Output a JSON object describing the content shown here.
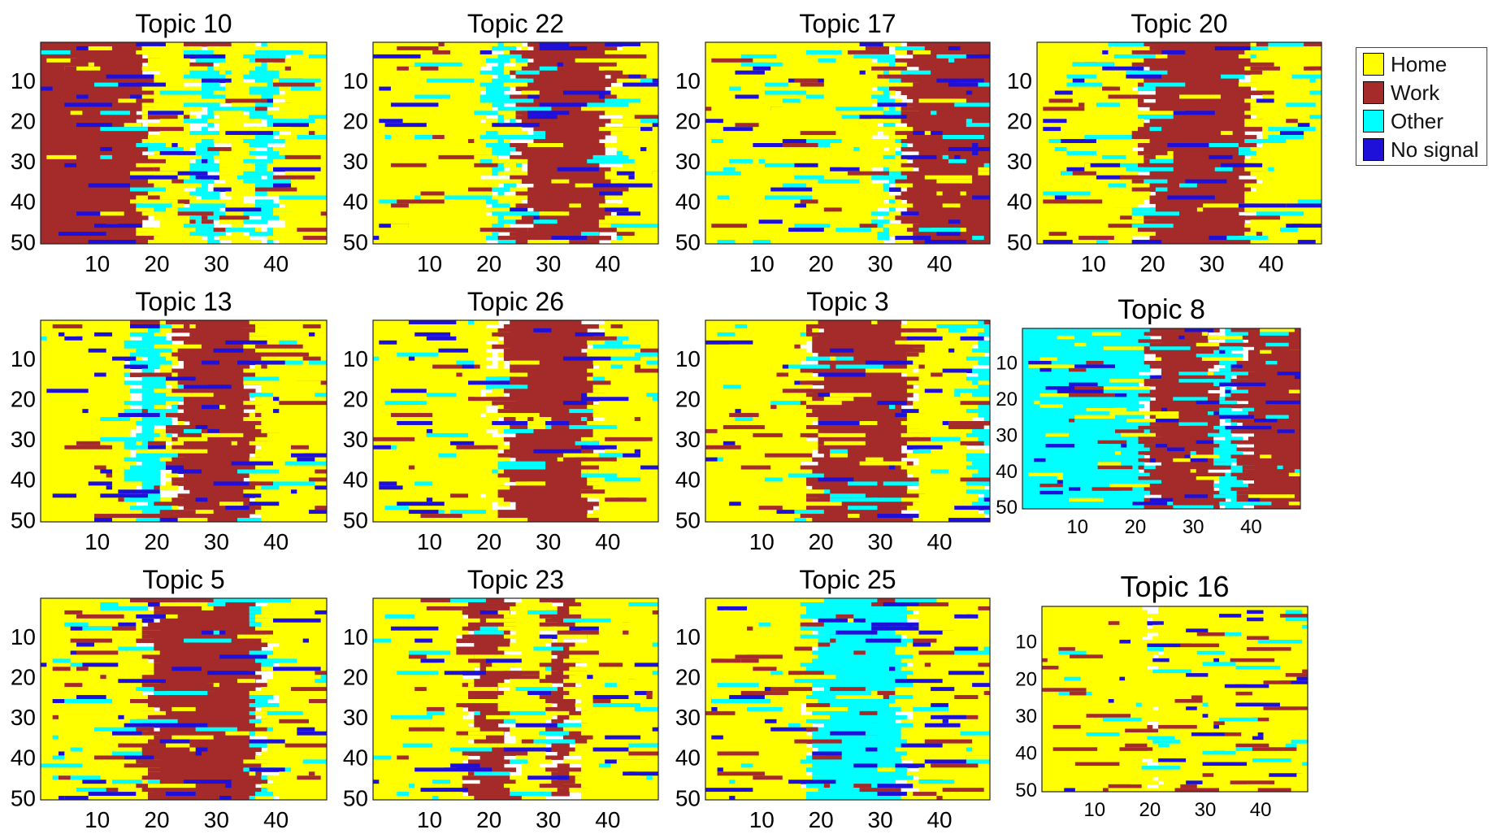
{
  "chart_data": {
    "type": "heatmap",
    "categories": [
      "Home",
      "Work",
      "Other",
      "No signal"
    ],
    "colors": {
      "Home": "#ffff00",
      "Work": "#a52a2a",
      "Other": "#00ffff",
      "No signal": "#1e10d9"
    },
    "x_ticks": [
      "10",
      "20",
      "30",
      "40"
    ],
    "y_ticks": [
      "10",
      "20",
      "30",
      "40",
      "50"
    ],
    "xlim": [
      0.5,
      48.5
    ],
    "ylim": [
      0.5,
      50.5
    ],
    "rows_per_panel": 50,
    "cols_per_panel": 48,
    "legend": {
      "placement": "top-right",
      "entries": [
        "Home",
        "Work",
        "Other",
        "No signal"
      ]
    },
    "panels": [
      {
        "title": "Topic 10",
        "segments": [
          [
            "Work",
            0,
            18
          ],
          [
            "Home",
            18,
            26
          ],
          [
            "Other",
            26,
            30
          ],
          [
            "Home",
            30,
            36
          ],
          [
            "Other",
            36,
            40
          ],
          [
            "Home",
            40,
            48
          ]
        ]
      },
      {
        "title": "Topic 22",
        "segments": [
          [
            "Home",
            0,
            20
          ],
          [
            "Other",
            20,
            23
          ],
          [
            "Home",
            23,
            25
          ],
          [
            "Work",
            25,
            40
          ],
          [
            "Home",
            40,
            48
          ]
        ]
      },
      {
        "title": "Topic 17",
        "segments": [
          [
            "Home",
            0,
            30
          ],
          [
            "Other",
            30,
            32
          ],
          [
            "Home",
            32,
            34
          ],
          [
            "Work",
            34,
            48
          ]
        ]
      },
      {
        "title": "Topic 20",
        "segments": [
          [
            "Home",
            0,
            18
          ],
          [
            "Work",
            18,
            36
          ],
          [
            "Home",
            36,
            48
          ]
        ]
      },
      {
        "title": "Topic 13",
        "segments": [
          [
            "Home",
            0,
            16
          ],
          [
            "Other",
            16,
            21
          ],
          [
            "Home",
            21,
            23
          ],
          [
            "Work",
            23,
            36
          ],
          [
            "Home",
            36,
            48
          ]
        ]
      },
      {
        "title": "Topic 26",
        "segments": [
          [
            "Home",
            0,
            20
          ],
          [
            "Home",
            20,
            22
          ],
          [
            "Work",
            22,
            37
          ],
          [
            "Home",
            37,
            48
          ]
        ]
      },
      {
        "title": "Topic 3",
        "segments": [
          [
            "Home",
            0,
            18
          ],
          [
            "Work",
            18,
            35
          ],
          [
            "Home",
            35,
            46
          ],
          [
            "Other",
            46,
            48
          ]
        ]
      },
      {
        "title": "Topic 8",
        "segments": [
          [
            "Other",
            0,
            22
          ],
          [
            "Work",
            22,
            34
          ],
          [
            "Other",
            34,
            38
          ],
          [
            "Work",
            38,
            48
          ]
        ]
      },
      {
        "title": "Topic 5",
        "segments": [
          [
            "Home",
            0,
            18
          ],
          [
            "Work",
            18,
            37
          ],
          [
            "Other",
            37,
            38
          ],
          [
            "Home",
            38,
            48
          ]
        ]
      },
      {
        "title": "Topic 23",
        "segments": [
          [
            "Home",
            0,
            16
          ],
          [
            "Work",
            16,
            23
          ],
          [
            "Home",
            23,
            30
          ],
          [
            "Work",
            30,
            34
          ],
          [
            "Home",
            34,
            48
          ]
        ]
      },
      {
        "title": "Topic 25",
        "segments": [
          [
            "Home",
            0,
            18
          ],
          [
            "Other",
            18,
            34
          ],
          [
            "Home",
            34,
            48
          ]
        ]
      },
      {
        "title": "Topic 16",
        "segments": [
          [
            "Home",
            0,
            20
          ],
          [
            "Home",
            20,
            48
          ]
        ]
      }
    ]
  }
}
